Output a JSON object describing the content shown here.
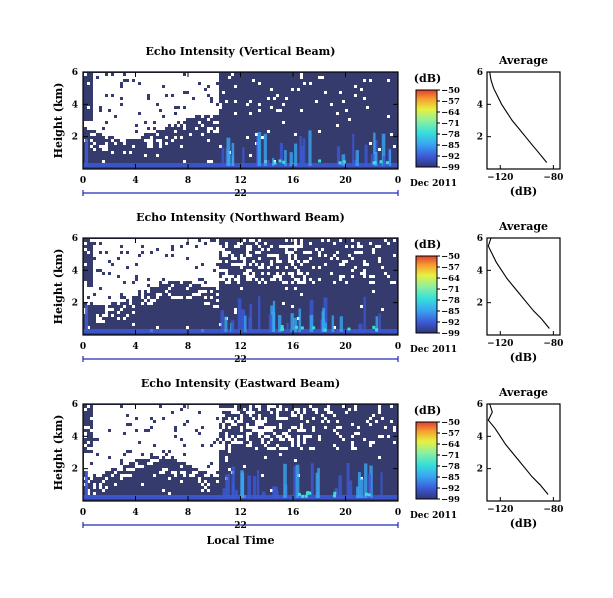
{
  "chart_data": [
    {
      "type": "heatmap",
      "title": "Echo Intensity (Vertical Beam)",
      "ylabel": "Height (km)",
      "xlabel": "",
      "x_ticks": [
        "0",
        "4",
        "8",
        "12",
        "16",
        "20",
        "0"
      ],
      "y_ticks": [
        "6",
        "4",
        "2"
      ],
      "xlim": [
        0,
        24
      ],
      "ylim": [
        0,
        6
      ],
      "date_day": "22",
      "date_label": "Dec 2011",
      "colorbar": {
        "unit": "(dB)",
        "ticks": [
          "-50",
          "-57",
          "-64",
          "-71",
          "-78",
          "-85",
          "-92",
          "-99"
        ],
        "range": [
          -99,
          -50
        ]
      },
      "profile": {
        "title": "Average",
        "xlabel": "(dB)",
        "x_ticks": [
          "-120",
          "-80"
        ],
        "y_ticks": [
          "6",
          "4",
          "2"
        ],
        "xlim": [
          -130,
          -75
        ],
        "ylim": [
          0,
          6
        ],
        "x": [
          -128,
          -127,
          -125,
          -122,
          -119,
          -115,
          -111,
          -106,
          -101,
          -96,
          -91,
          -85
        ],
        "y": [
          6.0,
          5.5,
          5.0,
          4.5,
          4.0,
          3.5,
          3.0,
          2.5,
          2.0,
          1.5,
          1.0,
          0.4
        ]
      }
    },
    {
      "type": "heatmap",
      "title": "Echo Intensity (Northward Beam)",
      "ylabel": "Height (km)",
      "xlabel": "",
      "x_ticks": [
        "0",
        "4",
        "8",
        "12",
        "16",
        "20",
        "0"
      ],
      "y_ticks": [
        "6",
        "4",
        "2"
      ],
      "xlim": [
        0,
        24
      ],
      "ylim": [
        0,
        6
      ],
      "date_day": "22",
      "date_label": "Dec 2011",
      "colorbar": {
        "unit": "(dB)",
        "ticks": [
          "-50",
          "-57",
          "-64",
          "-71",
          "-78",
          "-85",
          "-92",
          "-99"
        ],
        "range": [
          -99,
          -50
        ]
      },
      "profile": {
        "title": "Average",
        "xlabel": "(dB)",
        "x_ticks": [
          "-120",
          "-80"
        ],
        "y_ticks": [
          "6",
          "4",
          "2"
        ],
        "xlim": [
          -130,
          -75
        ],
        "ylim": [
          0,
          6
        ],
        "x": [
          -127,
          -129,
          -126,
          -123,
          -119,
          -115,
          -110,
          -105,
          -100,
          -95,
          -89,
          -83
        ],
        "y": [
          6.0,
          5.5,
          5.0,
          4.5,
          4.0,
          3.5,
          3.0,
          2.5,
          2.0,
          1.5,
          1.0,
          0.4
        ]
      }
    },
    {
      "type": "heatmap",
      "title": "Echo Intensity (Eastward Beam)",
      "ylabel": "Height (km)",
      "xlabel": "Local Time",
      "x_ticks": [
        "0",
        "4",
        "8",
        "12",
        "16",
        "20",
        "0"
      ],
      "y_ticks": [
        "6",
        "4",
        "2"
      ],
      "xlim": [
        0,
        24
      ],
      "ylim": [
        0,
        6
      ],
      "date_day": "22",
      "date_label": "Dec 2011",
      "colorbar": {
        "unit": "(dB)",
        "ticks": [
          "-50",
          "-57",
          "-64",
          "-71",
          "-78",
          "-85",
          "-92",
          "-99"
        ],
        "range": [
          -99,
          -50
        ]
      },
      "profile": {
        "title": "Average",
        "xlabel": "(dB)",
        "x_ticks": [
          "-120",
          "-80"
        ],
        "y_ticks": [
          "6",
          "4",
          "2"
        ],
        "xlim": [
          -130,
          -75
        ],
        "ylim": [
          0,
          6
        ],
        "x": [
          -128,
          -126,
          -129,
          -124,
          -120,
          -116,
          -111,
          -106,
          -101,
          -96,
          -90,
          -84
        ],
        "y": [
          6.0,
          5.5,
          5.0,
          4.5,
          4.0,
          3.5,
          3.0,
          2.5,
          2.0,
          1.5,
          1.0,
          0.4
        ]
      }
    }
  ],
  "colors": {
    "background_echo": "#363b6e",
    "no_data": "#ffffff",
    "axis": "#000000",
    "date_axis": "#1d2bb8",
    "colorbar_stops": [
      "#303575",
      "#3c5ad8",
      "#38a8f2",
      "#38e0d8",
      "#8cf0a0",
      "#e8f040",
      "#f6a030",
      "#e04030"
    ]
  }
}
